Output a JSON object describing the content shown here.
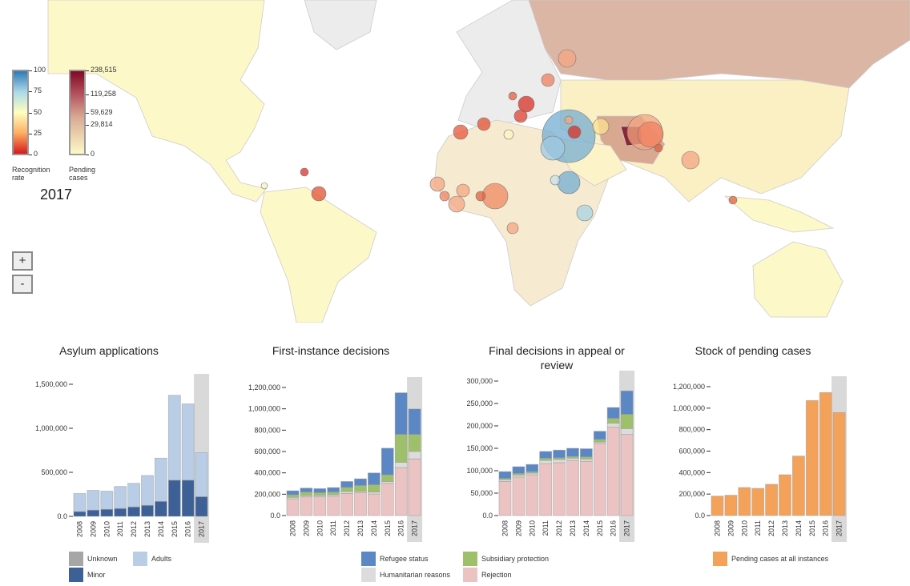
{
  "legend": {
    "recognition": {
      "label": "Recognition rate",
      "ticks": [
        "100",
        "75",
        "50",
        "25",
        "0"
      ]
    },
    "pending": {
      "label": "Pending cases",
      "ticks": [
        "238,515",
        "119,258",
        "59,629",
        "29,814",
        "0"
      ]
    },
    "year": "2017"
  },
  "zoom": {
    "in": "+",
    "out": "-"
  },
  "colors": {
    "highlight": "#d9d9d9",
    "unknown": "#a6a6a6",
    "adults": "#b9cde6",
    "minor": "#3d6197",
    "refugee": "#5b87c5",
    "subsidiary": "#9fc06a",
    "humanitarian": "#dcdcdc",
    "rejection": "#ebc3c3",
    "pending": "#f4a25a"
  },
  "chart_data": [
    {
      "type": "bar",
      "stacked": true,
      "title": "Asylum applications",
      "categories": [
        "2008",
        "2009",
        "2010",
        "2011",
        "2012",
        "2013",
        "2014",
        "2015",
        "2016",
        "2017"
      ],
      "highlight": "2017",
      "yticks": [
        "0.0",
        "500,000",
        "1,000,000",
        "1,500,000"
      ],
      "ylim": [
        0,
        1500000
      ],
      "series": [
        {
          "name": "Minor",
          "color": "#3d6197",
          "values": [
            54000,
            71000,
            80000,
            89000,
            107000,
            125000,
            170000,
            411000,
            411000,
            223000
          ]
        },
        {
          "name": "Adults",
          "color": "#b9cde6",
          "values": [
            205000,
            224000,
            206000,
            250000,
            268000,
            339000,
            491000,
            964000,
            866000,
            500000
          ]
        },
        {
          "name": "Unknown",
          "color": "#a6a6a6",
          "values": [
            0,
            0,
            0,
            0,
            0,
            0,
            0,
            0,
            0,
            0
          ]
        }
      ],
      "legend": [
        "Unknown",
        "Adults",
        "Minor"
      ]
    },
    {
      "type": "bar",
      "stacked": true,
      "title": "First-instance decisions",
      "categories": [
        "2008",
        "2009",
        "2010",
        "2011",
        "2012",
        "2013",
        "2014",
        "2015",
        "2016",
        "2017"
      ],
      "highlight": "2017",
      "yticks": [
        "0.0",
        "200,000",
        "400,000",
        "600,000",
        "800,000",
        "1,000,000",
        "1,200,000"
      ],
      "ylim": [
        0,
        1200000
      ],
      "series": [
        {
          "name": "Rejection",
          "color": "#ebc3c3",
          "values": [
            157000,
            175000,
            175000,
            182000,
            207000,
            215000,
            202000,
            302000,
            449000,
            531000
          ]
        },
        {
          "name": "Humanitarian reasons",
          "color": "#dcdcdc",
          "values": [
            13000,
            12000,
            12000,
            13000,
            18000,
            12000,
            18000,
            17000,
            50000,
            70000
          ]
        },
        {
          "name": "Subsidiary protection",
          "color": "#9fc06a",
          "values": [
            25000,
            33000,
            28000,
            25000,
            39000,
            55000,
            69000,
            63000,
            262000,
            160000
          ]
        },
        {
          "name": "Refugee status",
          "color": "#5b87c5",
          "values": [
            37000,
            37000,
            37000,
            42000,
            55000,
            62000,
            110000,
            249000,
            389000,
            237000
          ]
        }
      ],
      "legend": [
        "Refugee status",
        "Subsidiary protection",
        "Humanitarian reasons",
        "Rejection"
      ]
    },
    {
      "type": "bar",
      "stacked": true,
      "title": "Final decisions in appeal or review",
      "categories": [
        "2008",
        "2009",
        "2010",
        "2011",
        "2012",
        "2013",
        "2014",
        "2015",
        "2016",
        "2017"
      ],
      "highlight": "2017",
      "yticks": [
        "0.0",
        "50,000",
        "100,000",
        "150,000",
        "200,000",
        "250,000",
        "300,000"
      ],
      "ylim": [
        0,
        300000
      ],
      "series": [
        {
          "name": "Rejection",
          "color": "#ebc3c3",
          "values": [
            76000,
            86000,
            91000,
            116000,
            118000,
            123000,
            121000,
            161000,
            197000,
            181000
          ]
        },
        {
          "name": "Humanitarian reasons",
          "color": "#dcdcdc",
          "values": [
            4000,
            4000,
            3500,
            7000,
            7000,
            5000,
            5000,
            3000,
            9000,
            13000
          ]
        },
        {
          "name": "Subsidiary protection",
          "color": "#9fc06a",
          "values": [
            3000,
            4000,
            3500,
            5000,
            4000,
            4000,
            5000,
            6000,
            11000,
            32000
          ]
        },
        {
          "name": "Refugee status",
          "color": "#5b87c5",
          "values": [
            15000,
            15000,
            16000,
            15000,
            17000,
            18000,
            18000,
            18000,
            24000,
            52000
          ]
        }
      ]
    },
    {
      "type": "bar",
      "title": "Stock of pending cases",
      "categories": [
        "2008",
        "2009",
        "2010",
        "2011",
        "2012",
        "2013",
        "2014",
        "2015",
        "2016",
        "2017"
      ],
      "highlight": "2017",
      "yticks": [
        "0.0",
        "200,000",
        "400,000",
        "600,000",
        "800,000",
        "1,000,000",
        "1,200,000"
      ],
      "ylim": [
        0,
        1200000
      ],
      "series": [
        {
          "name": "Pending cases at all instances",
          "color": "#f4a25a",
          "values": [
            181000,
            189000,
            261000,
            253000,
            291000,
            380000,
            554000,
            1071000,
            1145000,
            959000
          ]
        }
      ],
      "legend": [
        "Pending cases at all instances"
      ]
    }
  ]
}
